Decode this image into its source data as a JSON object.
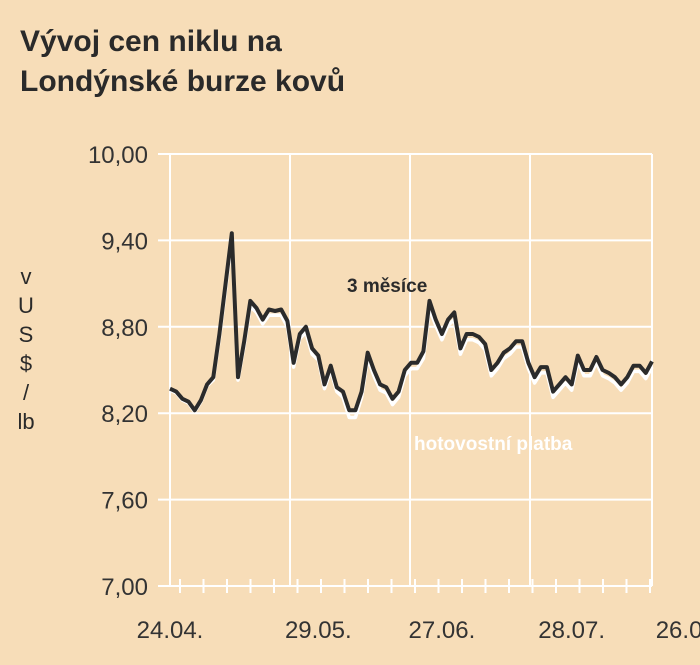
{
  "chart_data": {
    "type": "line",
    "title": "Vývoj cen niklu na\nLondýnské burze kovů",
    "ylabel": [
      "v",
      "U",
      "S",
      "$",
      "/",
      "lb"
    ],
    "ylim": [
      7.0,
      10.0
    ],
    "yticks": [
      "7,00",
      "7,60",
      "8,20",
      "8,80",
      "9,40",
      "10,00"
    ],
    "ytick_values": [
      7.0,
      7.6,
      8.2,
      8.8,
      9.4,
      10.0
    ],
    "xtick_labels": [
      "24.04.",
      "29.05.",
      "27.06.",
      "28.07.",
      "26.08."
    ],
    "xtick_index": [
      0,
      24,
      44,
      65,
      84
    ],
    "grid": true,
    "colors": {
      "three_month": "#2b2b2b",
      "cash": "#ffffff",
      "grid": "#ffffff"
    },
    "series": [
      {
        "name": "3 měsíce",
        "values": [
          8.37,
          8.35,
          8.3,
          8.28,
          8.22,
          8.29,
          8.4,
          8.45,
          8.75,
          9.1,
          9.45,
          8.45,
          8.7,
          8.98,
          8.93,
          8.85,
          8.92,
          8.91,
          8.92,
          8.84,
          8.55,
          8.75,
          8.8,
          8.65,
          8.6,
          8.4,
          8.53,
          8.38,
          8.35,
          8.22,
          8.22,
          8.35,
          8.62,
          8.5,
          8.4,
          8.38,
          8.3,
          8.35,
          8.5,
          8.55,
          8.55,
          8.63,
          8.98,
          8.85,
          8.75,
          8.85,
          8.9,
          8.65,
          8.75,
          8.75,
          8.73,
          8.68,
          8.5,
          8.55,
          8.62,
          8.65,
          8.7,
          8.7,
          8.55,
          8.45,
          8.52,
          8.52,
          8.35,
          8.4,
          8.45,
          8.4,
          8.6,
          8.5,
          8.5,
          8.59,
          8.5,
          8.48,
          8.45,
          8.4,
          8.45,
          8.53,
          8.53,
          8.48,
          8.56
        ]
      },
      {
        "name": "hotovostní platba",
        "values": [
          8.36,
          8.34,
          8.29,
          8.27,
          8.21,
          8.28,
          8.39,
          8.43,
          8.72,
          9.06,
          9.4,
          8.43,
          8.67,
          8.94,
          8.9,
          8.82,
          8.88,
          8.88,
          8.88,
          8.8,
          8.52,
          8.72,
          8.76,
          8.61,
          8.57,
          8.37,
          8.5,
          8.35,
          8.31,
          8.17,
          8.17,
          8.31,
          8.58,
          8.46,
          8.36,
          8.34,
          8.26,
          8.31,
          8.46,
          8.51,
          8.51,
          8.58,
          8.93,
          8.81,
          8.71,
          8.81,
          8.85,
          8.61,
          8.71,
          8.71,
          8.69,
          8.64,
          8.46,
          8.51,
          8.58,
          8.61,
          8.66,
          8.66,
          8.51,
          8.41,
          8.48,
          8.48,
          8.31,
          8.36,
          8.41,
          8.36,
          8.56,
          8.46,
          8.46,
          8.55,
          8.46,
          8.44,
          8.41,
          8.36,
          8.41,
          8.49,
          8.49,
          8.44,
          8.52
        ]
      }
    ],
    "annotations": [
      "3 měsíce",
      "hotovostní platba"
    ]
  }
}
